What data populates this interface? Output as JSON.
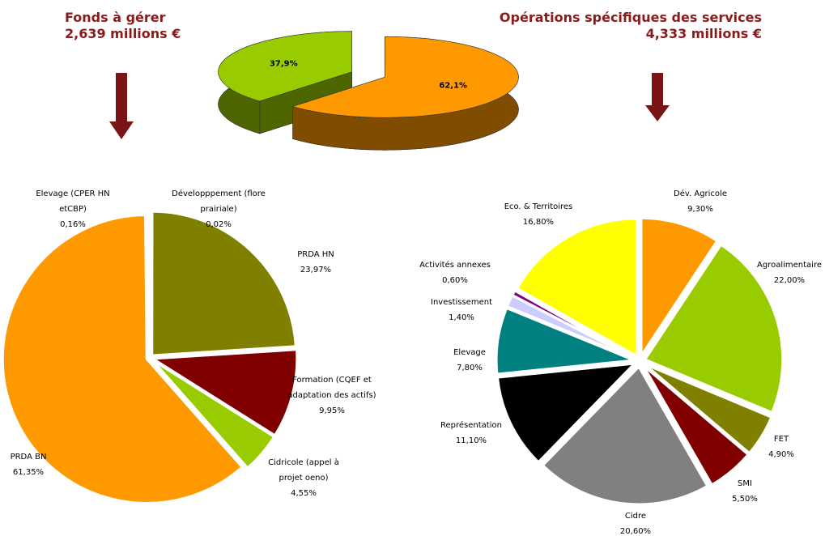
{
  "headings": [
    {
      "title": "Fonds à gérer",
      "amount": "2,639 millions €"
    },
    {
      "title": "Opérations spécifiques des services",
      "amount": "4,333 millions €"
    }
  ],
  "chart_data": [
    {
      "type": "pie3d",
      "values": [
        37.9,
        62.1
      ],
      "value_labels": [
        "37,9%",
        "62,1%"
      ],
      "colors": [
        "#99cc00",
        "#ff9900"
      ]
    },
    {
      "type": "pie",
      "categories": [
        "Développpement (flore prairiale)",
        "PRDA HN",
        "Formation (CQEF et adaptation des actifs)",
        "Cidricole (appel à projet oeno)",
        "PRDA BN",
        "Elevage (CPER HN etCBP)"
      ],
      "values": [
        0.02,
        23.97,
        9.95,
        4.55,
        61.35,
        0.16
      ],
      "value_labels": [
        "0,02%",
        "23,97%",
        "9,95%",
        "4,55%",
        "61,35%",
        "0,16%"
      ],
      "colors": [
        "#808000",
        "#808000",
        "#800000",
        "#99cc00",
        "#ff9900",
        "#3366cc"
      ]
    },
    {
      "type": "pie",
      "categories": [
        "Dév. Agricole",
        "Agroalimentaire",
        "FET",
        "SMI",
        "Cidre",
        "Représentation",
        "Elevage",
        "Investissement",
        "Activités annexes",
        "Eco. & Territoires"
      ],
      "values": [
        9.3,
        22.0,
        4.9,
        5.5,
        20.6,
        11.1,
        7.8,
        1.4,
        0.6,
        16.8
      ],
      "value_labels": [
        "9,30%",
        "22,00%",
        "4,90%",
        "5,50%",
        "20,60%",
        "11,10%",
        "7,80%",
        "1,40%",
        "0,60%",
        "16,80%"
      ],
      "colors": [
        "#ff9900",
        "#99cc00",
        "#808000",
        "#800000",
        "#808080",
        "#000000",
        "#008080",
        "#ccccff",
        "#800080",
        "#ffff00"
      ]
    }
  ]
}
